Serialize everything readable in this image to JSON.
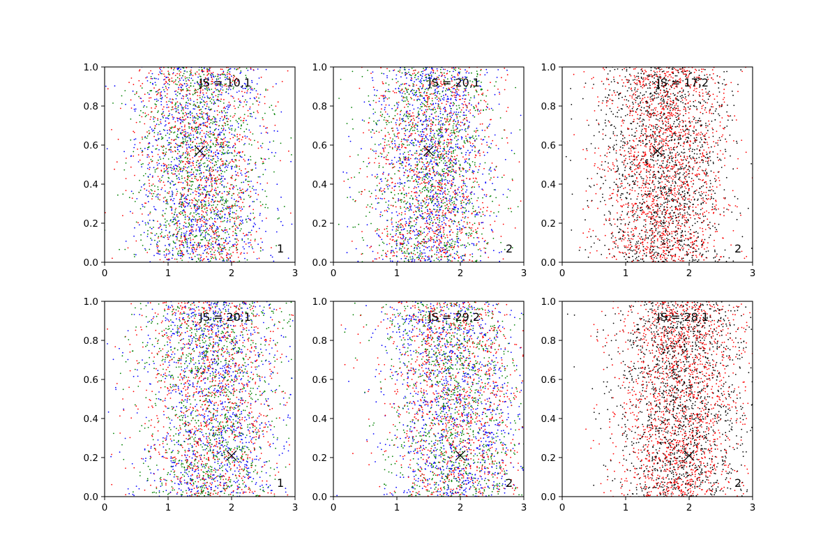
{
  "chart_data": [
    {
      "type": "scatter",
      "annotation": "JS = 10,1",
      "corner_label": "1",
      "marker": {
        "x": 1.5,
        "y": 0.57
      },
      "xlim": [
        0,
        3
      ],
      "ylim": [
        0,
        1
      ],
      "xticks": [
        "0",
        "1",
        "2",
        "3"
      ],
      "yticks": [
        "0.0",
        "0.2",
        "0.4",
        "0.6",
        "0.8",
        "1.0"
      ],
      "series_colors": [
        "#0000ff",
        "#ff0000",
        "#008000"
      ],
      "distribution": {
        "center_x": 1.5,
        "spread_x": 0.5,
        "center_x_shift": 0
      }
    },
    {
      "type": "scatter",
      "annotation": "JS = 20,1",
      "corner_label": "2",
      "marker": {
        "x": 1.5,
        "y": 0.57
      },
      "xlim": [
        0,
        3
      ],
      "ylim": [
        0,
        1
      ],
      "xticks": [
        "0",
        "1",
        "2",
        "3"
      ],
      "yticks": [
        "0.0",
        "0.2",
        "0.4",
        "0.6",
        "0.8",
        "1.0"
      ],
      "series_colors": [
        "#0000ff",
        "#ff0000",
        "#008000"
      ],
      "distribution": {
        "center_x": 1.55,
        "spread_x": 0.5,
        "center_x_shift": 0
      }
    },
    {
      "type": "scatter",
      "annotation": "JS = 17,2",
      "corner_label": "2",
      "marker": {
        "x": 1.5,
        "y": 0.57
      },
      "xlim": [
        0,
        3
      ],
      "ylim": [
        0,
        1
      ],
      "xticks": [
        "0",
        "1",
        "2",
        "3"
      ],
      "yticks": [
        "0.0",
        "0.2",
        "0.4",
        "0.6",
        "0.8",
        "1.0"
      ],
      "series_colors": [
        "#000000",
        "#ff0000"
      ],
      "distribution": {
        "center_x": 1.6,
        "spread_x": 0.5,
        "center_x_shift": 0
      }
    },
    {
      "type": "scatter",
      "annotation": "JS = 20,1",
      "corner_label": "1",
      "marker": {
        "x": 2.0,
        "y": 0.21
      },
      "xlim": [
        0,
        3
      ],
      "ylim": [
        0,
        1
      ],
      "xticks": [
        "0",
        "1",
        "2",
        "3"
      ],
      "yticks": [
        "0.0",
        "0.2",
        "0.4",
        "0.6",
        "0.8",
        "1.0"
      ],
      "series_colors": [
        "#0000ff",
        "#ff0000",
        "#008000"
      ],
      "distribution": {
        "center_x": 1.7,
        "spread_x": 0.55,
        "center_x_shift": 0
      }
    },
    {
      "type": "scatter",
      "annotation": "JS = 29,2",
      "corner_label": "2",
      "marker": {
        "x": 2.0,
        "y": 0.21
      },
      "xlim": [
        0,
        3
      ],
      "ylim": [
        0,
        1
      ],
      "xticks": [
        "0",
        "1",
        "2",
        "3"
      ],
      "yticks": [
        "0.0",
        "0.2",
        "0.4",
        "0.6",
        "0.8",
        "1.0"
      ],
      "series_colors": [
        "#0000ff",
        "#ff0000",
        "#008000"
      ],
      "distribution": {
        "center_x": 1.75,
        "spread_x": 0.55,
        "center_x_shift": 0.3
      }
    },
    {
      "type": "scatter",
      "annotation": "JS = 28,1",
      "corner_label": "2",
      "marker": {
        "x": 2.0,
        "y": 0.21
      },
      "xlim": [
        0,
        3
      ],
      "ylim": [
        0,
        1
      ],
      "xticks": [
        "0",
        "1",
        "2",
        "3"
      ],
      "yticks": [
        "0.0",
        "0.2",
        "0.4",
        "0.6",
        "0.8",
        "1.0"
      ],
      "series_colors": [
        "#000000",
        "#ff0000"
      ],
      "distribution": {
        "center_x": 1.85,
        "spread_x": 0.5,
        "center_x_shift": 0
      }
    }
  ]
}
